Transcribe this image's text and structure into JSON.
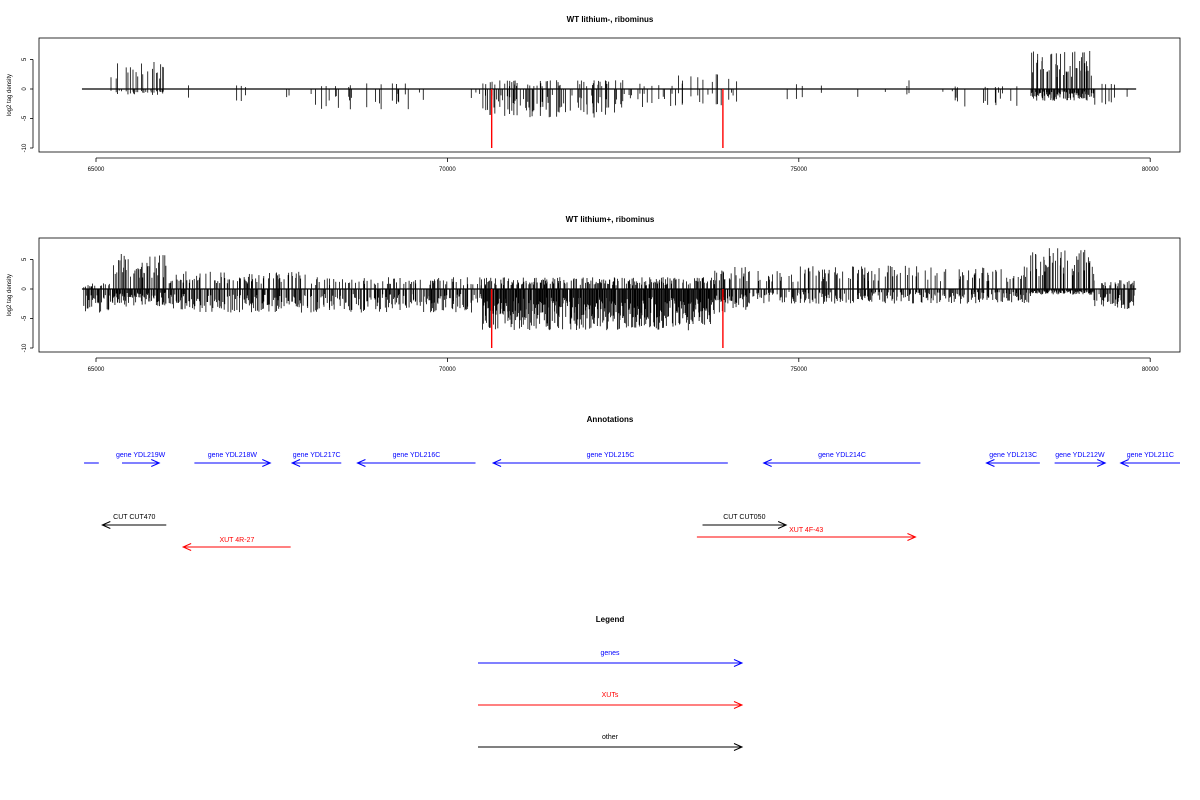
{
  "chart_data": [
    {
      "type": "bar",
      "title": "WT lithium-, ribominus",
      "ylabel": "log2 tag density",
      "xlim": [
        64800,
        79800
      ],
      "ylim": [
        -10,
        8
      ],
      "xticks": [
        65000,
        70000,
        75000,
        80000
      ],
      "yticks": [
        -10,
        -5,
        0,
        5
      ],
      "bar_color": "#000000",
      "marker_color": "#ff0000",
      "markers": [
        {
          "x": 70630,
          "y": -10
        },
        {
          "x": 73920,
          "y": -10
        }
      ],
      "profile": [
        {
          "from": 64820,
          "to": 65000,
          "density": 0.03,
          "plus": 0,
          "minus": -1.5
        },
        {
          "from": 65000,
          "to": 65200,
          "density": 0.02,
          "plus": 0,
          "minus": -1.5
        },
        {
          "from": 65200,
          "to": 66000,
          "density": 0.4,
          "plus": 5,
          "minus": -1
        },
        {
          "from": 66000,
          "to": 67500,
          "density": 0.01,
          "plus": 1,
          "minus": -3
        },
        {
          "from": 67500,
          "to": 67600,
          "density": 0.03,
          "plus": 3,
          "minus": -1
        },
        {
          "from": 67600,
          "to": 68000,
          "density": 0.03,
          "plus": 0,
          "minus": -2
        },
        {
          "from": 68000,
          "to": 69500,
          "density": 0.2,
          "plus": 1,
          "minus": -3.5
        },
        {
          "from": 69500,
          "to": 70500,
          "density": 0.05,
          "plus": 0,
          "minus": -2
        },
        {
          "from": 70500,
          "to": 72500,
          "density": 0.35,
          "plus": 1.5,
          "minus": -5
        },
        {
          "from": 72500,
          "to": 73200,
          "density": 0.2,
          "plus": 1,
          "minus": -3.5
        },
        {
          "from": 73200,
          "to": 74200,
          "density": 0.15,
          "plus": 3,
          "minus": -3
        },
        {
          "from": 74200,
          "to": 75500,
          "density": 0.03,
          "plus": 1,
          "minus": -2
        },
        {
          "from": 75500,
          "to": 77200,
          "density": 0.02,
          "plus": 1.5,
          "minus": -1.5
        },
        {
          "from": 77200,
          "to": 78300,
          "density": 0.15,
          "plus": 0.5,
          "minus": -3
        },
        {
          "from": 78300,
          "to": 79200,
          "density": 0.9,
          "plus": 6.5,
          "minus": -2
        },
        {
          "from": 79200,
          "to": 79800,
          "density": 0.08,
          "plus": 1,
          "minus": -3
        }
      ]
    },
    {
      "type": "bar",
      "title": "WT lithium+, ribominus",
      "ylabel": "log2 tag density",
      "xlim": [
        64800,
        79800
      ],
      "ylim": [
        -10,
        8
      ],
      "xticks": [
        65000,
        70000,
        75000,
        80000
      ],
      "yticks": [
        -10,
        -5,
        0,
        5
      ],
      "bar_color": "#000000",
      "marker_color": "#ff0000",
      "markers": [
        {
          "x": 70630,
          "y": -10
        },
        {
          "x": 73920,
          "y": -10
        }
      ],
      "profile": [
        {
          "from": 64820,
          "to": 65200,
          "density": 0.5,
          "plus": 1,
          "minus": -4
        },
        {
          "from": 65200,
          "to": 66000,
          "density": 0.85,
          "plus": 6,
          "minus": -3
        },
        {
          "from": 66000,
          "to": 68000,
          "density": 0.6,
          "plus": 3,
          "minus": -4
        },
        {
          "from": 68000,
          "to": 70500,
          "density": 0.6,
          "plus": 2,
          "minus": -4
        },
        {
          "from": 70500,
          "to": 73800,
          "density": 0.95,
          "plus": 2,
          "minus": -7
        },
        {
          "from": 73800,
          "to": 74300,
          "density": 0.7,
          "plus": 4,
          "minus": -4
        },
        {
          "from": 74300,
          "to": 78300,
          "density": 0.55,
          "plus": 4,
          "minus": -2.5
        },
        {
          "from": 78300,
          "to": 79200,
          "density": 0.95,
          "plus": 7,
          "minus": -1
        },
        {
          "from": 79200,
          "to": 79800,
          "density": 0.5,
          "plus": 1.5,
          "minus": -3.5
        }
      ]
    }
  ],
  "annotations": {
    "title": "Annotations",
    "features": [
      {
        "label": "",
        "start": 64830,
        "end": 65040,
        "dir": "none",
        "color": "#0000ff",
        "row": 0
      },
      {
        "label": "gene YDL219W",
        "start": 65370,
        "end": 65900,
        "dir": "right",
        "color": "#0000ff",
        "row": 0
      },
      {
        "label": "gene YDL218W",
        "start": 66400,
        "end": 67480,
        "dir": "right",
        "color": "#0000ff",
        "row": 0
      },
      {
        "label": "gene YDL217C",
        "start": 67790,
        "end": 68490,
        "dir": "left",
        "color": "#0000ff",
        "row": 0
      },
      {
        "label": "gene YDL216C",
        "start": 68720,
        "end": 70400,
        "dir": "left",
        "color": "#0000ff",
        "row": 0
      },
      {
        "label": "gene YDL215C",
        "start": 70650,
        "end": 73990,
        "dir": "left",
        "color": "#0000ff",
        "row": 0
      },
      {
        "label": "gene YDL214C",
        "start": 74500,
        "end": 76730,
        "dir": "left",
        "color": "#0000ff",
        "row": 0
      },
      {
        "label": "gene YDL213C",
        "start": 77670,
        "end": 78430,
        "dir": "left",
        "color": "#0000ff",
        "row": 0
      },
      {
        "label": "gene YDL212W",
        "start": 78640,
        "end": 79360,
        "dir": "right",
        "color": "#0000ff",
        "row": 0
      },
      {
        "label": "gene YDL211C",
        "start": 79580,
        "end": 80610,
        "dir": "left",
        "color": "#0000ff",
        "row": 0
      },
      {
        "label": "CUT CUT470",
        "start": 65090,
        "end": 66000,
        "dir": "left",
        "color": "#000000",
        "row": 1
      },
      {
        "label": "CUT CUT050",
        "start": 73630,
        "end": 74820,
        "dir": "right",
        "color": "#000000",
        "row": 1
      },
      {
        "label": "XUT 4F-43",
        "start": 73550,
        "end": 76660,
        "dir": "right",
        "color": "#ff0000",
        "row": 2
      },
      {
        "label": "XUT 4R-27",
        "start": 66240,
        "end": 67770,
        "dir": "left",
        "color": "#ff0000",
        "row": 3
      }
    ]
  },
  "legend": {
    "title": "Legend",
    "items": [
      {
        "label": "genes",
        "color": "#0000ff"
      },
      {
        "label": "XUTs",
        "color": "#ff0000"
      },
      {
        "label": "other",
        "color": "#000000"
      }
    ]
  }
}
